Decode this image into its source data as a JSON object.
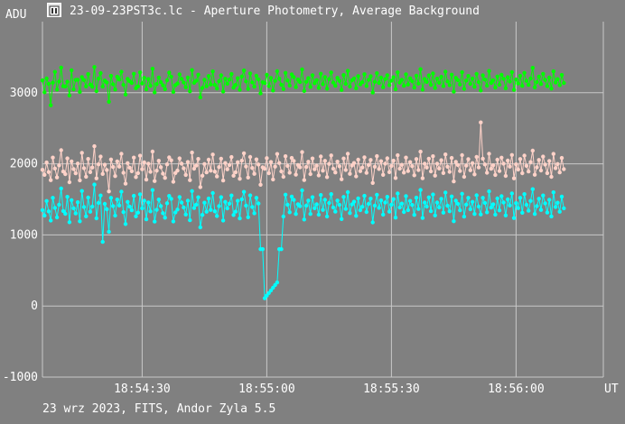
{
  "window": {
    "title": "23-09-23PST3c.lc - Aperture Photometry, Average Background",
    "icon": "photometry-app-icon"
  },
  "footer": {
    "caption": "23 wrz 2023, FITS, Andor Zyla 5.5"
  },
  "colors": {
    "background": "#808080",
    "grid": "#c8c8c8",
    "axis_text": "#ffffff",
    "series_green": "#00ff00",
    "series_pink": "#ffd2c8",
    "series_cyan": "#00ffff"
  },
  "chart_data": {
    "type": "line",
    "title": "",
    "xlabel": "UT",
    "ylabel": "ADU",
    "ylim": [
      -1000,
      4000
    ],
    "xlim": [
      "18:54:06",
      "18:56:21"
    ],
    "y_ticks": [
      -1000,
      0,
      1000,
      2000,
      3000
    ],
    "y_tick_labels": [
      "-1000",
      "0",
      "1000",
      "2000",
      "3000"
    ],
    "x_ticks": [
      "18:54:30",
      "18:55:00",
      "18:55:30",
      "18:56:00"
    ],
    "x_tick_labels": [
      "18:54:30",
      "18:55:00",
      "18:55:30",
      "18:56:00"
    ],
    "grid": true,
    "legend": "none",
    "markers": "dots",
    "sample_interval_s": 0.5,
    "series": [
      {
        "color": "#00ff00",
        "values": [
          3174,
          3006,
          3201,
          3125,
          2823,
          3141,
          3293,
          3045,
          3158,
          3354,
          3091,
          3089,
          3155,
          2962,
          3316,
          3048,
          3180,
          3183,
          3012,
          3221,
          3178,
          3089,
          3261,
          3115,
          3084,
          3362,
          3023,
          3199,
          3275,
          3087,
          3171,
          3143,
          2873,
          3237,
          3119,
          3046,
          3224,
          3185,
          3294,
          3112,
          2975,
          3195,
          3163,
          3138,
          3267,
          3063,
          3090,
          3287,
          3131,
          3210,
          3048,
          3193,
          3098,
          3338,
          3005,
          3122,
          3215,
          3148,
          3104,
          3051,
          3175,
          3283,
          3226,
          3011,
          3106,
          3130,
          3258,
          3194,
          3144,
          3077,
          3213,
          3020,
          3319,
          3139,
          3168,
          3254,
          2935,
          3067,
          3182,
          3092,
          3235,
          3117,
          3299,
          3111,
          3060,
          3162,
          3245,
          3017,
          3197,
          3127,
          3184,
          3263,
          3071,
          3109,
          3204,
          3042,
          3228,
          3313,
          3160,
          3055,
          3271,
          3146,
          3085,
          3239,
          3188,
          2991,
          3150,
          3136,
          3251,
          3094,
          3208,
          3032,
          3167,
          3302,
          3198,
          3113,
          3052,
          3279,
          3172,
          3101,
          3257,
          3219,
          3079,
          3186,
          3150,
          3327,
          3026,
          3153,
          3206,
          3083,
          3246,
          3134,
          3178,
          3069,
          3267,
          3120,
          3221,
          3057,
          3192,
          3285,
          3143,
          3098,
          3210,
          3166,
          3039,
          3249,
          3126,
          3307,
          3087,
          3175,
          3201,
          3063,
          3233,
          3118,
          3148,
          3260,
          3095,
          3182,
          3231,
          3002,
          3154,
          3274,
          3137,
          3214,
          3078,
          3192,
          3246,
          3107,
          3170,
          3218,
          3051,
          3287,
          3142,
          3181,
          3098,
          3259,
          3115,
          3203,
          3162,
          3072,
          3238,
          3128,
          3331,
          3044,
          3193,
          3152,
          3244,
          3112,
          3270,
          3068,
          3198,
          3141,
          3225,
          3093,
          3296,
          3159,
          3107,
          3254,
          3015,
          3210,
          3178,
          3116,
          3288,
          3056,
          3171,
          3236,
          3124,
          3199,
          3082,
          3265,
          3150,
          3032,
          3245,
          3185,
          3099,
          3306,
          3138,
          3176,
          3072,
          3229,
          3113,
          3253,
          3195,
          3064,
          3218,
          3157,
          3289,
          3041,
          3187,
          3130,
          3237,
          3096,
          3279,
          3168,
          3110,
          3202,
          3350,
          3076,
          3150,
          3226,
          3123,
          3265,
          3180,
          3094,
          3213,
          3058,
          3301,
          3145,
          3191,
          3106,
          3250,
          3137
        ],
        "notes": "raw values approximate"
      },
      {
        "color": "#ffd2c8",
        "values": [
          1916,
          1845,
          2019,
          1884,
          1770,
          2087,
          1934,
          1808,
          1979,
          2191,
          1892,
          1855,
          2076,
          1741,
          2034,
          1927,
          1867,
          2004,
          1768,
          2155,
          1939,
          1818,
          2069,
          1883,
          1948,
          2248,
          1796,
          1993,
          2102,
          1858,
          1987,
          1912,
          1612,
          2061,
          1956,
          1827,
          2034,
          1961,
          2141,
          1875,
          1721,
          2010,
          1946,
          1896,
          2088,
          1813,
          1869,
          2114,
          1924,
          2020,
          1778,
          2003,
          1887,
          2172,
          1757,
          1904,
          2043,
          1953,
          1862,
          1802,
          1992,
          2090,
          2049,
          1747,
          1871,
          1905,
          2076,
          2002,
          1937,
          1844,
          2026,
          1770,
          2159,
          1932,
          1974,
          2069,
          1673,
          1832,
          1998,
          1879,
          2058,
          1903,
          2131,
          1891,
          1822,
          1954,
          2072,
          1765,
          2011,
          1923,
          1984,
          2095,
          1833,
          1882,
          2023,
          1789,
          2045,
          2148,
          1962,
          1807,
          2097,
          1942,
          1859,
          2062,
          1990,
          1706,
          1950,
          1930,
          2080,
          1868,
          2026,
          1780,
          1961,
          2138,
          2012,
          1893,
          1817,
          2106,
          1971,
          1876,
          2082,
          2041,
          1848,
          1983,
          1950,
          2165,
          1771,
          1955,
          2029,
          1855,
          2075,
          1924,
          1974,
          1838,
          2103,
          1903,
          2042,
          1814,
          1999,
          2118,
          1932,
          1878,
          2030,
          1966,
          1783,
          2075,
          1914,
          2142,
          1859,
          1976,
          2012,
          1824,
          2059,
          1897,
          1948,
          2091,
          1873,
          1984,
          2054,
          1731,
          1959,
          2108,
          1928,
          2037,
          1845,
          2002,
          2077,
          1883,
          1970,
          2045,
          1801,
          2121,
          1931,
          1986,
          1877,
          2088,
          1898,
          2024,
          1967,
          1839,
          2067,
          1912,
          2171,
          1797,
          2001,
          1948,
          2072,
          1893,
          2106,
          1834,
          2003,
          1934,
          2051,
          1870,
          2132,
          1959,
          1887,
          2083,
          1752,
          2028,
          1984,
          1899,
          2122,
          1817,
          1975,
          2066,
          1910,
          2010,
          1851,
          2098,
          1949,
          2583,
          2072,
          1991,
          1875,
          2142,
          1930,
          1980,
          1844,
          2058,
          1898,
          2086,
          2002,
          1830,
          2046,
          1961,
          2125,
          1796,
          1993,
          1920,
          2067,
          1868,
          2115,
          1972,
          1892,
          2024,
          2185,
          1847,
          1950,
          2055,
          1906,
          2101,
          1990,
          1869,
          2041,
          1817,
          2140,
          1939,
          1998,
          1880,
          2083,
          1925
        ],
        "notes": "raw values approximate"
      },
      {
        "color": "#00ffff",
        "values": [
          1349,
          1271,
          1477,
          1331,
          1203,
          1521,
          1381,
          1246,
          1425,
          1653,
          1336,
          1297,
          1535,
          1179,
          1489,
          1374,
          1302,
          1459,
          1191,
          1618,
          1392,
          1262,
          1526,
          1326,
          1399,
          1708,
          1234,
          1451,
          1554,
          902,
          1436,
          1362,
          1045,
          1522,
          1406,
          1271,
          1497,
          1414,
          1608,
          1321,
          1153,
          1465,
          1397,
          1346,
          1549,
          1261,
          1314,
          1571,
          1375,
          1481,
          1220,
          1457,
          1331,
          1631,
          1188,
          1353,
          1498,
          1406,
          1306,
          1243,
          1446,
          1548,
          1508,
          1190,
          1316,
          1356,
          1533,
          1455,
          1386,
          1287,
          1481,
          1207,
          1617,
          1378,
          1425,
          1529,
          1107,
          1282,
          1453,
          1326,
          1511,
          1352,
          1589,
          1333,
          1265,
          1405,
          1530,
          1203,
          1465,
          1373,
          1439,
          1554,
          1281,
          1328,
          1480,
          1232,
          1501,
          1605,
          1411,
          1249,
          1556,
          1393,
          1305,
          1521,
          1441,
          1145,
          1404,
          1382,
          1537,
          1314,
          1478,
          1229,
          1412,
          1597,
          1463,
          1339,
          1259,
          1566,
          1425,
          1319,
          1539,
          1493,
          1295,
          1432,
          1404,
          1627,
          1217,
          1411,
          1483,
          1295,
          1531,
          1376,
          1430,
          1284,
          1561,
          1352,
          1494,
          1259,
          1449,
          1573,
          1386,
          1327,
          1483,
          1422,
          1223,
          1534,
          1366,
          1601,
          1307,
          1429,
          1467,
          1268,
          1514,
          1348,
          1396,
          1550,
          1322,
          1436,
          1510,
          1177,
          1413,
          1565,
          1381,
          1486,
          1286,
          1455,
          1535,
          1327,
          1425,
          1504,
          1244,
          1583,
          1386,
          1440,
          1322,
          1546,
          1349,
          1478,
          1421,
          1282,
          1524,
          1364,
          1632,
          1239,
          1455,
          1398,
          1528,
          1334,
          1568,
          1274,
          1456,
          1387,
          1507,
          1314,
          1596,
          1410,
          1332,
          1541,
          1193,
          1481,
          1437,
          1347,
          1579,
          1258,
          1427,
          1522,
          1362,
          1464,
          1294,
          1557,
          1399,
          1288,
          1522,
          1450,
          1319,
          1613,
          1385,
          1432,
          1286,
          1513,
          1345,
          1544,
          1455,
          1274,
          1500,
          1414,
          1584,
          1237,
          1447,
          1377,
          1521,
          1312,
          1574,
          1424,
          1340,
          1478,
          1644,
          1294,
          1405,
          1509,
          1352,
          1555,
          1444,
          1315,
          1495,
          1260,
          1599,
          1392,
          1453,
          1326,
          1539,
          1375
        ],
        "notes": "raw values approximate"
      }
    ]
  }
}
